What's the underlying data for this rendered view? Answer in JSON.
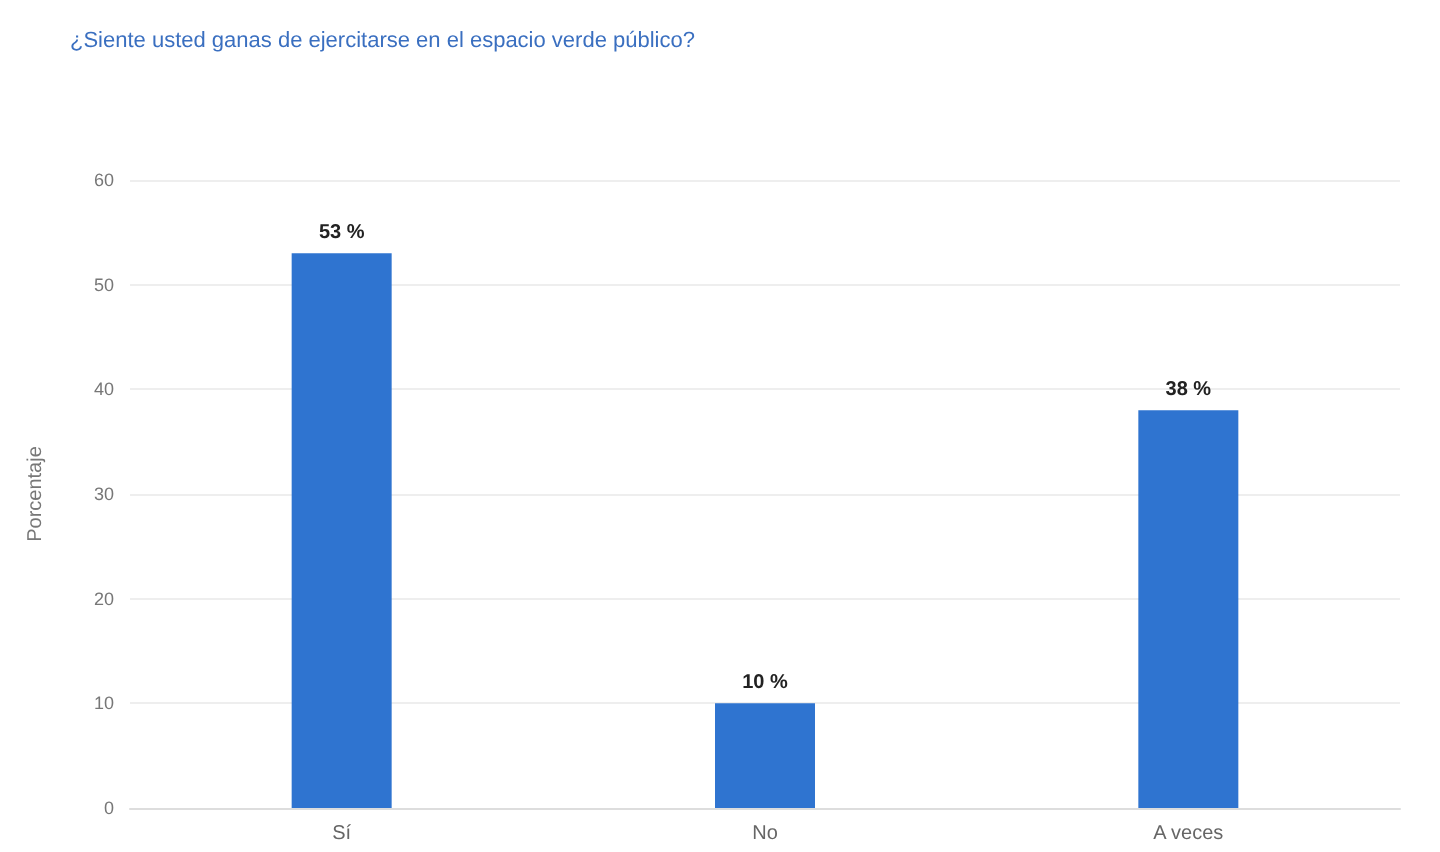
{
  "chart_data": {
    "type": "bar",
    "title": "¿Siente usted ganas de ejercitarse en el espacio verde público?",
    "ylabel": "Porcentaje",
    "categories": [
      "Sí",
      "No",
      "A veces"
    ],
    "values": [
      53,
      10,
      38
    ],
    "value_labels": [
      "53 %",
      "10 %",
      "38 %"
    ],
    "color": "#2f74d0",
    "ylim": [
      0,
      60
    ],
    "yticks": [
      0,
      10,
      20,
      30,
      40,
      50,
      60
    ],
    "grid": "y"
  }
}
